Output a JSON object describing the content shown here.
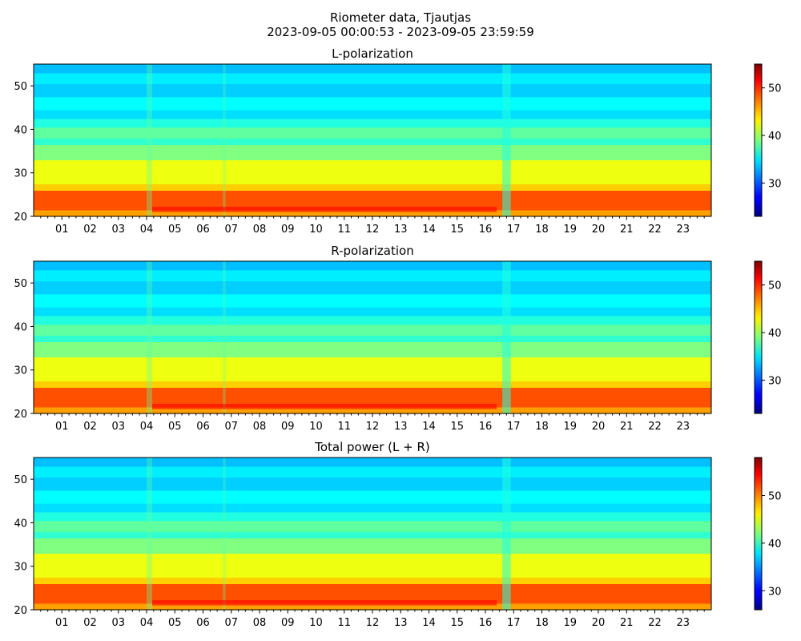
{
  "figure": {
    "title": "Riometer data, Tjautjas",
    "subtitle": "2023-09-05 00:00:53 - 2023-09-05 23:59:59"
  },
  "chart_data": [
    {
      "type": "heatmap",
      "title": "L-polarization",
      "x_tick_labels": [
        "01",
        "02",
        "03",
        "04",
        "05",
        "06",
        "07",
        "08",
        "09",
        "10",
        "11",
        "12",
        "13",
        "14",
        "15",
        "16",
        "17",
        "18",
        "19",
        "20",
        "21",
        "22",
        "23"
      ],
      "y_ticks": [
        20,
        30,
        40,
        50
      ],
      "ylim": [
        20,
        55
      ],
      "xlim": [
        0,
        24
      ],
      "colorbar": {
        "range": [
          23,
          55
        ],
        "ticks": [
          30,
          40,
          50
        ]
      },
      "colormap": "jet",
      "grid": false
    },
    {
      "type": "heatmap",
      "title": "R-polarization",
      "x_tick_labels": [
        "01",
        "02",
        "03",
        "04",
        "05",
        "06",
        "07",
        "08",
        "09",
        "10",
        "11",
        "12",
        "13",
        "14",
        "15",
        "16",
        "17",
        "18",
        "19",
        "20",
        "21",
        "22",
        "23"
      ],
      "y_ticks": [
        20,
        30,
        40,
        50
      ],
      "ylim": [
        20,
        55
      ],
      "xlim": [
        0,
        24
      ],
      "colorbar": {
        "range": [
          23,
          55
        ],
        "ticks": [
          30,
          40,
          50
        ]
      },
      "colormap": "jet",
      "grid": false
    },
    {
      "type": "heatmap",
      "title": "Total power (L + R)",
      "x_tick_labels": [
        "01",
        "02",
        "03",
        "04",
        "05",
        "06",
        "07",
        "08",
        "09",
        "10",
        "11",
        "12",
        "13",
        "14",
        "15",
        "16",
        "17",
        "18",
        "19",
        "20",
        "21",
        "22",
        "23"
      ],
      "y_ticks": [
        20,
        30,
        40,
        50
      ],
      "ylim": [
        20,
        55
      ],
      "xlim": [
        0,
        24
      ],
      "colorbar": {
        "range": [
          26,
          58
        ],
        "ticks": [
          30,
          40,
          50
        ]
      },
      "colormap": "jet",
      "grid": false
    }
  ]
}
